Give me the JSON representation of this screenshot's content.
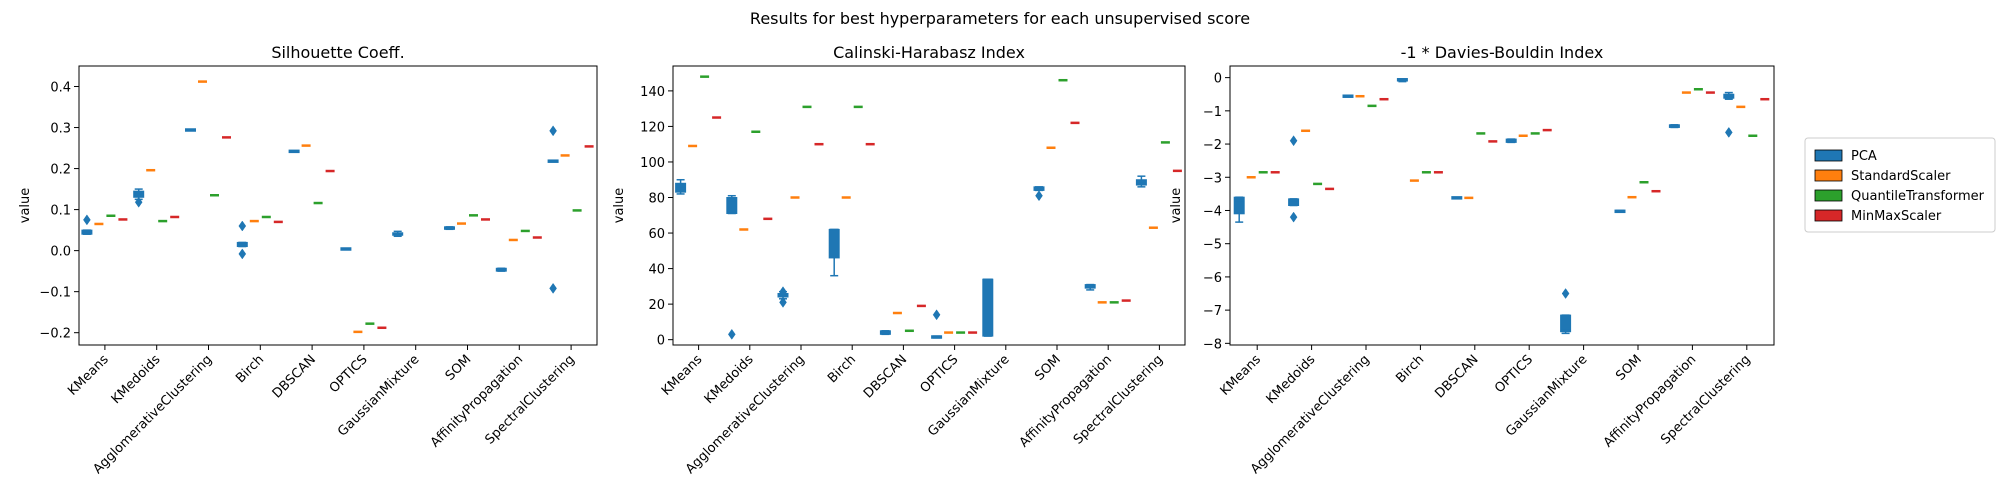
{
  "suptitle": "Results for best hyperparameters for each unsupervised score",
  "legend": {
    "placement": "right",
    "entries": [
      {
        "name": "PCA",
        "color": "#1f77b4"
      },
      {
        "name": "StandardScaler",
        "color": "#ff7f0e"
      },
      {
        "name": "QuantileTransformer",
        "color": "#2ca02c"
      },
      {
        "name": "MinMaxScaler",
        "color": "#d62728"
      }
    ]
  },
  "chart_data": [
    {
      "type": "box",
      "title": "Silhouette Coeff.",
      "ylabel": "value",
      "ylim": [
        -0.23,
        0.45
      ],
      "yticks": [
        -0.2,
        -0.1,
        0.0,
        0.1,
        0.2,
        0.3,
        0.4
      ],
      "ytick_labels": [
        "−0.2",
        "−0.1",
        "0.0",
        "0.1",
        "0.2",
        "0.3",
        "0.4"
      ],
      "categories": [
        "KMeans",
        "KMedoids",
        "AgglomerativeClustering",
        "Birch",
        "DBSCAN",
        "OPTICS",
        "GaussianMixture",
        "SOM",
        "AffinityPropagation",
        "SpectralClustering"
      ],
      "series": [
        {
          "name": "PCA",
          "boxes": [
            {
              "q1": 0.04,
              "q3": 0.05,
              "med": 0.045,
              "wl": 0.04,
              "wh": 0.05,
              "fliers": [
                0.075
              ]
            },
            {
              "q1": 0.13,
              "q3": 0.145,
              "med": 0.138,
              "wl": 0.125,
              "wh": 0.15,
              "fliers": [
                0.118
              ]
            },
            {
              "q1": 0.294,
              "q3": 0.294,
              "med": 0.294,
              "wl": 0.294,
              "wh": 0.294,
              "fliers": []
            },
            {
              "q1": 0.01,
              "q3": 0.02,
              "med": 0.015,
              "wl": 0.01,
              "wh": 0.02,
              "fliers": [
                0.06,
                -0.008
              ]
            },
            {
              "q1": 0.242,
              "q3": 0.242,
              "med": 0.242,
              "wl": 0.242,
              "wh": 0.242,
              "fliers": []
            },
            {
              "q1": 0.003,
              "q3": 0.005,
              "med": 0.004,
              "wl": 0.003,
              "wh": 0.005,
              "fliers": []
            },
            {
              "q1": 0.038,
              "q3": 0.043,
              "med": 0.04,
              "wl": 0.035,
              "wh": 0.047,
              "fliers": []
            },
            {
              "q1": 0.052,
              "q3": 0.058,
              "med": 0.055,
              "wl": 0.052,
              "wh": 0.058,
              "fliers": []
            },
            {
              "q1": -0.05,
              "q3": -0.043,
              "med": -0.046,
              "wl": -0.05,
              "wh": -0.043,
              "fliers": []
            },
            {
              "q1": 0.218,
              "q3": 0.218,
              "med": 0.218,
              "wl": 0.218,
              "wh": 0.218,
              "fliers": [
                0.292,
                -0.092
              ]
            }
          ]
        },
        {
          "name": "StandardScaler",
          "values": [
            0.065,
            0.196,
            0.412,
            0.072,
            0.256,
            -0.198,
            null,
            0.066,
            0.026,
            0.232
          ]
        },
        {
          "name": "QuantileTransformer",
          "values": [
            0.085,
            0.072,
            0.135,
            0.082,
            0.116,
            -0.178,
            null,
            0.086,
            0.048,
            0.098
          ]
        },
        {
          "name": "MinMaxScaler",
          "values": [
            0.076,
            0.082,
            0.276,
            0.07,
            0.194,
            -0.188,
            null,
            0.076,
            0.032,
            0.254
          ]
        }
      ]
    },
    {
      "type": "box",
      "title": "Calinski-Harabasz Index",
      "ylabel": "value",
      "ylim": [
        -3,
        154
      ],
      "yticks": [
        0,
        20,
        40,
        60,
        80,
        100,
        120,
        140
      ],
      "ytick_labels": [
        "0",
        "20",
        "40",
        "60",
        "80",
        "100",
        "120",
        "140"
      ],
      "categories": [
        "KMeans",
        "KMedoids",
        "AgglomerativeClustering",
        "Birch",
        "DBSCAN",
        "OPTICS",
        "GaussianMixture",
        "SOM",
        "AffinityPropagation",
        "SpectralClustering"
      ],
      "series": [
        {
          "name": "PCA",
          "boxes": [
            {
              "q1": 83,
              "q3": 88,
              "med": 85,
              "wl": 82,
              "wh": 90,
              "fliers": []
            },
            {
              "q1": 71,
              "q3": 80,
              "med": 78,
              "wl": 71,
              "wh": 81,
              "fliers": [
                3
              ]
            },
            {
              "q1": 24,
              "q3": 26,
              "med": 25,
              "wl": 23,
              "wh": 27,
              "fliers": [
                21,
                27
              ]
            },
            {
              "q1": 46,
              "q3": 62,
              "med": 62,
              "wl": 36,
              "wh": 62,
              "fliers": []
            },
            {
              "q1": 3,
              "q3": 5,
              "med": 4,
              "wl": 3,
              "wh": 5,
              "fliers": []
            },
            {
              "q1": 1,
              "q3": 2,
              "med": 1.5,
              "wl": 1,
              "wh": 2,
              "fliers": [
                14
              ]
            },
            {
              "q1": 2,
              "q3": 34,
              "med": 34,
              "wl": 2,
              "wh": 34,
              "fliers": []
            },
            {
              "q1": 84,
              "q3": 86,
              "med": 85,
              "wl": 84,
              "wh": 86,
              "fliers": [
                81
              ]
            },
            {
              "q1": 29,
              "q3": 31,
              "med": 30,
              "wl": 28,
              "wh": 31,
              "fliers": []
            },
            {
              "q1": 87,
              "q3": 90,
              "med": 88,
              "wl": 86,
              "wh": 92,
              "fliers": []
            }
          ]
        },
        {
          "name": "StandardScaler",
          "values": [
            109,
            62,
            80,
            80,
            15,
            4,
            null,
            108,
            21,
            63
          ]
        },
        {
          "name": "QuantileTransformer",
          "values": [
            148,
            117,
            131,
            131,
            5,
            4,
            null,
            146,
            21,
            111
          ]
        },
        {
          "name": "MinMaxScaler",
          "values": [
            125,
            68,
            110,
            110,
            19,
            4,
            null,
            122,
            22,
            95
          ]
        }
      ]
    },
    {
      "type": "box",
      "title": "-1 * Davies-Bouldin Index",
      "ylabel": "value",
      "ylim": [
        -8.05,
        0.35
      ],
      "yticks": [
        -8,
        -7,
        -6,
        -5,
        -4,
        -3,
        -2,
        -1,
        0
      ],
      "ytick_labels": [
        "−8",
        "−7",
        "−6",
        "−5",
        "−4",
        "−3",
        "−2",
        "−1",
        "0"
      ],
      "categories": [
        "KMeans",
        "KMedoids",
        "AgglomerativeClustering",
        "Birch",
        "DBSCAN",
        "OPTICS",
        "GaussianMixture",
        "SOM",
        "AffinityPropagation",
        "SpectralClustering"
      ],
      "series": [
        {
          "name": "PCA",
          "boxes": [
            {
              "q1": -4.1,
              "q3": -3.6,
              "med": -3.7,
              "wl": -4.35,
              "wh": -3.6,
              "fliers": []
            },
            {
              "q1": -3.85,
              "q3": -3.65,
              "med": -3.72,
              "wl": -3.85,
              "wh": -3.65,
              "fliers": [
                -1.9,
                -4.2
              ]
            },
            {
              "q1": -0.56,
              "q3": -0.56,
              "med": -0.56,
              "wl": -0.56,
              "wh": -0.56,
              "fliers": []
            },
            {
              "q1": -0.08,
              "q3": -0.05,
              "med": -0.06,
              "wl": -0.12,
              "wh": -0.04,
              "fliers": []
            },
            {
              "q1": -3.62,
              "q3": -3.62,
              "med": -3.62,
              "wl": -3.62,
              "wh": -3.62,
              "fliers": []
            },
            {
              "q1": -1.95,
              "q3": -1.85,
              "med": -1.9,
              "wl": -1.95,
              "wh": -1.85,
              "fliers": []
            },
            {
              "q1": -7.65,
              "q3": -7.15,
              "med": -7.6,
              "wl": -7.7,
              "wh": -7.15,
              "fliers": [
                -6.5
              ]
            },
            {
              "q1": -4.05,
              "q3": -4.0,
              "med": -4.02,
              "wl": -4.05,
              "wh": -4.0,
              "fliers": []
            },
            {
              "q1": -1.5,
              "q3": -1.42,
              "med": -1.46,
              "wl": -1.5,
              "wh": -1.42,
              "fliers": []
            },
            {
              "q1": -0.62,
              "q3": -0.5,
              "med": -0.55,
              "wl": -0.65,
              "wh": -0.45,
              "fliers": [
                -1.65
              ]
            }
          ]
        },
        {
          "name": "StandardScaler",
          "values": [
            -3.0,
            -1.6,
            -0.56,
            -3.1,
            -3.62,
            -1.75,
            null,
            -3.6,
            -0.45,
            -0.88
          ]
        },
        {
          "name": "QuantileTransformer",
          "values": [
            -2.85,
            -3.2,
            -0.85,
            -2.85,
            -1.68,
            -1.68,
            null,
            -3.15,
            -0.35,
            -1.75
          ]
        },
        {
          "name": "MinMaxScaler",
          "values": [
            -2.85,
            -3.35,
            -0.65,
            -2.85,
            -1.92,
            -1.58,
            null,
            -3.42,
            -0.45,
            -0.65
          ]
        }
      ]
    }
  ]
}
